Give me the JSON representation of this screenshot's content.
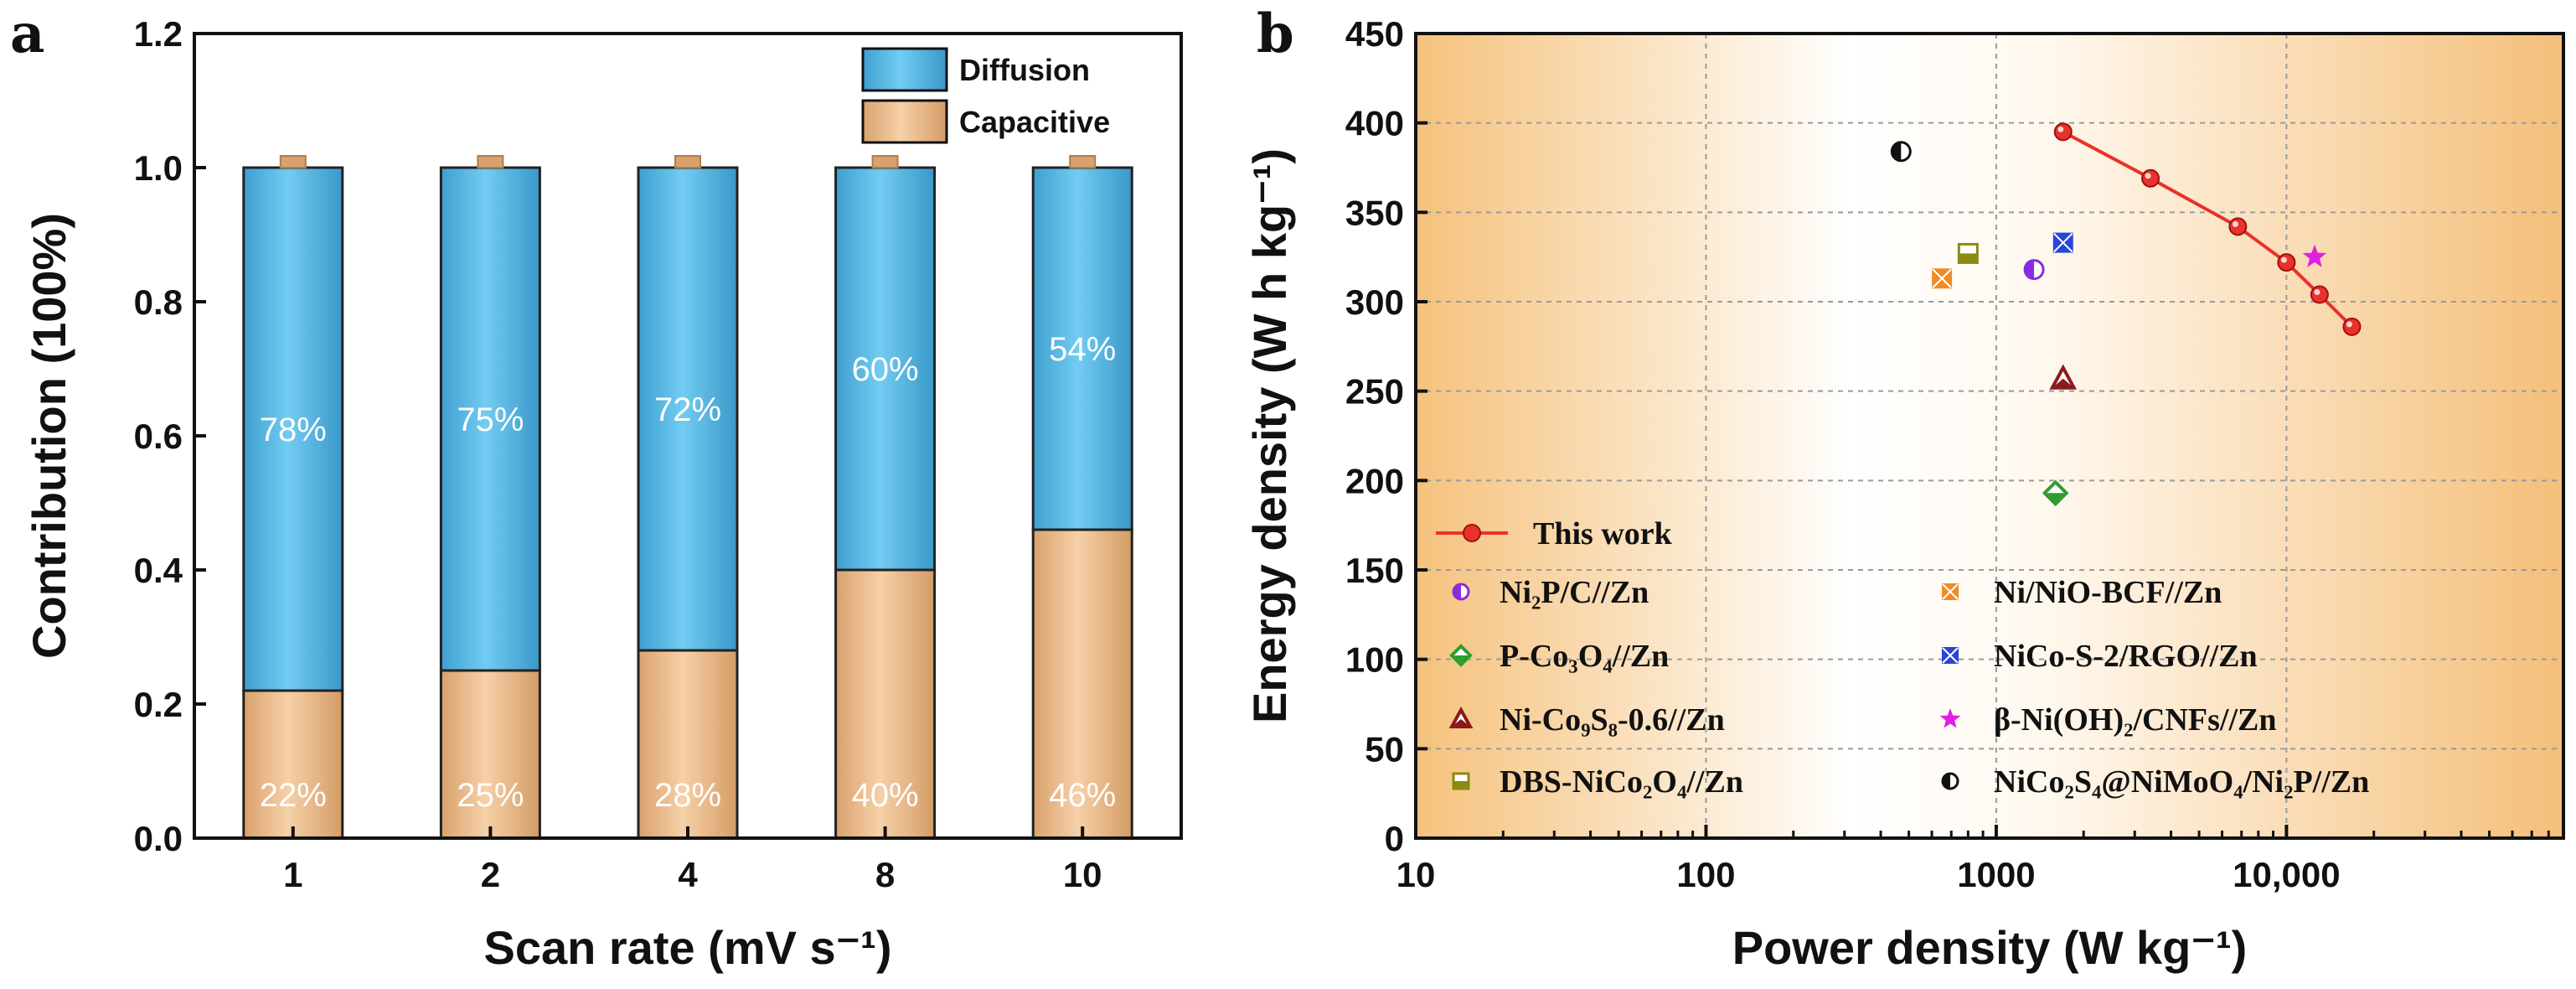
{
  "colors": {
    "diffusion_fill": "#5bbfea",
    "capacitive_fill": "#efc396",
    "this_work_line": "#e8322a",
    "bg_orange": "#f6c88c"
  },
  "chart_data": [
    {
      "panel_label": "a",
      "type": "bar",
      "stacked": true,
      "title": "",
      "xlabel": "Scan rate (mV s⁻¹)",
      "ylabel": "Contribution (100%)",
      "ylim": [
        0,
        1.2
      ],
      "yticks": [
        "0.0",
        "0.2",
        "0.4",
        "0.6",
        "0.8",
        "1.0",
        "1.2"
      ],
      "categories": [
        "1",
        "2",
        "4",
        "8",
        "10"
      ],
      "series": [
        {
          "name": "Capacitive",
          "values": [
            0.22,
            0.25,
            0.28,
            0.4,
            0.46
          ],
          "labels": [
            "22%",
            "25%",
            "28%",
            "40%",
            "46%"
          ]
        },
        {
          "name": "Diffusion",
          "values": [
            0.78,
            0.75,
            0.72,
            0.6,
            0.54
          ],
          "labels": [
            "78%",
            "75%",
            "72%",
            "60%",
            "54%"
          ]
        }
      ],
      "legend": [
        {
          "label": "Diffusion",
          "series": "Diffusion"
        },
        {
          "label": "Capacitive",
          "series": "Capacitive"
        }
      ],
      "legend_position": "top-right"
    },
    {
      "panel_label": "b",
      "type": "scatter",
      "title": "",
      "xlabel": "Power density (W kg⁻¹)",
      "ylabel": "Energy density (W h kg⁻¹)",
      "xscale": "log",
      "xlim": [
        10,
        90000
      ],
      "ylim": [
        0,
        450
      ],
      "xticks": [
        {
          "value": 10,
          "label": "10"
        },
        {
          "value": 100,
          "label": "100"
        },
        {
          "value": 1000,
          "label": "1000"
        },
        {
          "value": 10000,
          "label": "10,000"
        }
      ],
      "yticks": [
        "0",
        "50",
        "100",
        "150",
        "200",
        "250",
        "300",
        "350",
        "400",
        "450"
      ],
      "this_work": {
        "label": "This work",
        "points": [
          [
            1700,
            395
          ],
          [
            3400,
            369
          ],
          [
            6800,
            342
          ],
          [
            10000,
            322
          ],
          [
            13000,
            304
          ],
          [
            16800,
            286
          ]
        ]
      },
      "references": [
        {
          "label": "Ni₂P/C//Zn",
          "x": 1350,
          "y": 318,
          "marker": "half-circle",
          "color": "#8a2be2"
        },
        {
          "label": "Ni/NiO-BCF//Zn",
          "x": 650,
          "y": 313,
          "marker": "square-x",
          "color": "#f08a24"
        },
        {
          "label": "P-Co₃O₄//Zn",
          "x": 1600,
          "y": 193,
          "marker": "diamond",
          "color": "#2e9e2e"
        },
        {
          "label": "NiCo-S-2/RGO//Zn",
          "x": 1700,
          "y": 333,
          "marker": "square-x",
          "color": "#2846d8"
        },
        {
          "label": "Ni-Co₉S₈-0.6//Zn",
          "x": 1700,
          "y": 257,
          "marker": "triangle",
          "color": "#8b1a1a"
        },
        {
          "label": "β-Ni(OH)₂/CNFs//Zn",
          "x": 12500,
          "y": 325,
          "marker": "star",
          "color": "#e020e0"
        },
        {
          "label": "DBS-NiCo₂O₄//Zn",
          "x": 800,
          "y": 327,
          "marker": "half-square",
          "color": "#8a8a10"
        },
        {
          "label": "NiCo₂S₄@NiMoO₄/Ni₂P//Zn",
          "x": 470,
          "y": 384,
          "marker": "half-circle",
          "color": "#111111"
        }
      ],
      "legend_position": "bottom-left"
    }
  ]
}
